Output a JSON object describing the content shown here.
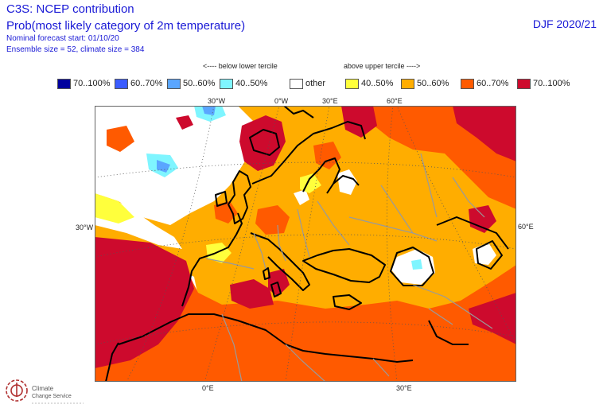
{
  "header": {
    "title": "C3S: NCEP contribution",
    "subtitle": "Prob(most likely category of 2m temperature)",
    "nominal_start": "Nominal forecast start: 01/10/20",
    "ensemble": "Ensemble size = 52, climate size = 384",
    "season": "DJF 2020/21"
  },
  "tercile_labels": {
    "below": "<---- below lower tercile",
    "above": "above upper tercile ---->"
  },
  "legend": [
    {
      "label": "70..100%",
      "color": "#00009e"
    },
    {
      "label": "60..70%",
      "color": "#3b5cff"
    },
    {
      "label": "50..60%",
      "color": "#5aa6ff"
    },
    {
      "label": "40..50%",
      "color": "#7ff5ff"
    },
    {
      "label": "other",
      "color": "#ffffff"
    },
    {
      "label": "40..50%",
      "color": "#ffff3c"
    },
    {
      "label": "50..60%",
      "color": "#ffad00"
    },
    {
      "label": "60..70%",
      "color": "#ff5a00"
    },
    {
      "label": "70..100%",
      "color": "#cd0a2d"
    }
  ],
  "map_labels": {
    "lon_top_1": "30°W",
    "lon_top_2": "0°W",
    "lon_top_3": "30°E",
    "lon_top_4": "60°E",
    "lat_left": "30°W",
    "lat_right": "60°E",
    "lon_bottom_1": "0°E",
    "lon_bottom_2": "30°E"
  },
  "logo": {
    "line1": "Climate",
    "line2": "Change Service"
  },
  "colors": {
    "header_text": "#1a1ad6",
    "coast": "#000000",
    "borders": "#9a9a9a",
    "graticule": "#555555"
  }
}
